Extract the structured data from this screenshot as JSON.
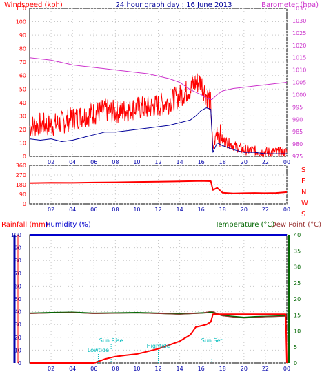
{
  "header": {
    "left_label": "Windspeed (kph)",
    "title": "24 hour graph day : 16 June 2013",
    "right_label": "Barometer (hpa)"
  },
  "mid": {
    "right_letters": [
      "S",
      "E",
      "N",
      "W",
      "S"
    ]
  },
  "bottom": {
    "rain_label": "Rainfall (mm)",
    "humidity_label": "Humidity (%)",
    "temp_label": "Temperature (°C)",
    "dew_label": "Dew Point (°C)"
  },
  "annotations": [
    {
      "text": "Lowtide",
      "x": 6.4
    },
    {
      "text": "Sun Rise",
      "x": 7.6
    },
    {
      "text": "Hightide",
      "x": 12.0
    },
    {
      "text": "Sun Set",
      "x": 17.0
    }
  ],
  "colors": {
    "wind": "#ff0000",
    "gust_fill": "#ff0000",
    "avg_wind": "#000099",
    "barometer": "#cc33cc",
    "direction": "#ff0000",
    "rain": "#ff0000",
    "humidity": "#0000cc",
    "temperature": "#006600",
    "dewpoint": "#993333",
    "axis_blue": "#0000aa",
    "axis_red": "#ff0000",
    "axis_magenta": "#cc33cc",
    "axis_green": "#006600",
    "annotation": "#00bbbb"
  },
  "chart_data": [
    {
      "type": "line",
      "x_ticks": [
        "02",
        "04",
        "06",
        "08",
        "10",
        "12",
        "14",
        "16",
        "18",
        "20",
        "22",
        "00"
      ],
      "y_left_ticks": [
        0,
        10,
        20,
        30,
        40,
        50,
        60,
        70,
        80,
        90,
        100,
        110
      ],
      "y_right_ticks": [
        975,
        980,
        985,
        990,
        995,
        1000,
        1005,
        1010,
        1015,
        1020,
        1025,
        1030,
        1035
      ],
      "ylim": [
        0,
        110
      ],
      "ylim_right": [
        975,
        1035
      ],
      "series": [
        {
          "name": "Windspeed (kph)",
          "x": [
            0,
            1,
            2,
            3,
            4,
            5,
            6,
            7,
            8,
            9,
            10,
            11,
            12,
            13,
            14,
            15,
            15.5,
            16,
            16.5,
            16.9,
            17.1,
            17.5,
            18,
            19,
            20,
            21,
            22,
            23,
            24
          ],
          "values": [
            22,
            24,
            23,
            25,
            28,
            30,
            32,
            34,
            33,
            34,
            36,
            36,
            38,
            40,
            45,
            50,
            55,
            55,
            45,
            40,
            4,
            20,
            12,
            8,
            5,
            4,
            3,
            3,
            3
          ]
        },
        {
          "name": "Windspeed (kph)",
          "x": [
            0,
            1,
            2,
            3,
            4,
            5,
            6,
            7,
            8,
            9,
            10,
            11,
            12,
            13,
            14,
            15,
            15.5,
            16,
            16.5,
            16.9,
            17.1,
            17.5,
            18,
            19,
            20,
            21,
            22,
            23,
            24
          ],
          "values": [
            13,
            12,
            13,
            11,
            12,
            14,
            16,
            18,
            18,
            19,
            20,
            21,
            22,
            23,
            25,
            27,
            30,
            34,
            36,
            35,
            3,
            10,
            8,
            5,
            3,
            3,
            2,
            2,
            2
          ]
        },
        {
          "name": "Barometer (hpa)",
          "x": [
            0,
            1,
            2,
            3,
            4,
            5,
            6,
            7,
            8,
            9,
            10,
            11,
            12,
            13,
            14,
            15,
            16,
            16.5,
            17,
            17.5,
            18,
            19,
            20,
            21,
            22,
            23,
            24
          ],
          "values": [
            1015,
            1014.5,
            1014,
            1013,
            1012,
            1011.5,
            1011,
            1010.5,
            1010,
            1009.5,
            1009,
            1008.5,
            1007.5,
            1006.5,
            1005,
            1002,
            1000,
            998.5,
            998,
            1000,
            1001.5,
            1002.5,
            1003,
            1003.5,
            1004,
            1004.5,
            1005
          ]
        }
      ]
    },
    {
      "type": "line",
      "x_ticks": [
        "02",
        "04",
        "06",
        "08",
        "10",
        "12",
        "14",
        "16",
        "18",
        "20",
        "22",
        "00"
      ],
      "y_ticks": [
        0,
        90,
        180,
        270,
        360
      ],
      "ylim": [
        0,
        360
      ],
      "series": [
        {
          "name": "Wind direction",
          "x": [
            0,
            2,
            4,
            6,
            8,
            10,
            12,
            14,
            16,
            16.9,
            17.1,
            17.5,
            18,
            19,
            20,
            21,
            22,
            23,
            24
          ],
          "values": [
            195,
            198,
            197,
            200,
            202,
            205,
            207,
            210,
            215,
            212,
            130,
            150,
            105,
            98,
            100,
            102,
            100,
            102,
            110
          ]
        }
      ]
    },
    {
      "type": "line",
      "x_ticks": [
        "02",
        "04",
        "06",
        "08",
        "10",
        "12",
        "14",
        "16",
        "18",
        "20",
        "22",
        "00"
      ],
      "y_left_ticks": [
        0,
        10,
        20,
        30,
        40,
        50,
        60,
        70,
        80,
        90,
        100
      ],
      "y_right_ticks": [
        0,
        5,
        10,
        15,
        20,
        25,
        30,
        35,
        40
      ],
      "ylim": [
        0,
        100
      ],
      "ylim_right": [
        0,
        40
      ],
      "series": [
        {
          "name": "Rainfall (mm)",
          "x": [
            0,
            1,
            2,
            3,
            4,
            5,
            6,
            7,
            8,
            9,
            10,
            11,
            12,
            13,
            14,
            15,
            15.5,
            16,
            16.5,
            16.9,
            17.1,
            18,
            19,
            20,
            21,
            22,
            23,
            23.9,
            24
          ],
          "values": [
            0,
            0,
            0,
            0,
            0,
            0,
            0,
            3,
            5,
            6,
            7,
            9,
            11,
            14,
            17,
            22,
            28,
            29,
            30,
            32,
            38,
            38,
            38,
            38,
            38,
            38,
            38,
            38,
            0
          ]
        },
        {
          "name": "Humidity (%)",
          "x": [
            0,
            24
          ],
          "values": [
            100,
            100
          ]
        },
        {
          "name": "Temperature (°C)",
          "x": [
            0,
            2,
            4,
            6,
            8,
            10,
            12,
            14,
            16,
            17,
            18,
            19,
            20,
            21,
            22,
            23,
            24
          ],
          "values": [
            15.5,
            15.7,
            15.8,
            15.5,
            15.6,
            15.7,
            15.5,
            15.3,
            15.6,
            15.8,
            14.8,
            14.5,
            14.2,
            14.4,
            14.5,
            14.6,
            14.7
          ]
        },
        {
          "name": "Dew Point (°C)",
          "x": [
            0,
            2,
            4,
            6,
            8,
            10,
            12,
            14,
            16,
            17,
            18,
            19,
            20,
            21,
            22,
            23,
            24
          ],
          "values": [
            15.4,
            15.6,
            15.7,
            15.4,
            15.5,
            15.6,
            15.4,
            15.2,
            15.5,
            16.2,
            14.7,
            14.3,
            14.0,
            14.2,
            14.4,
            14.5,
            14.6
          ]
        }
      ]
    }
  ]
}
